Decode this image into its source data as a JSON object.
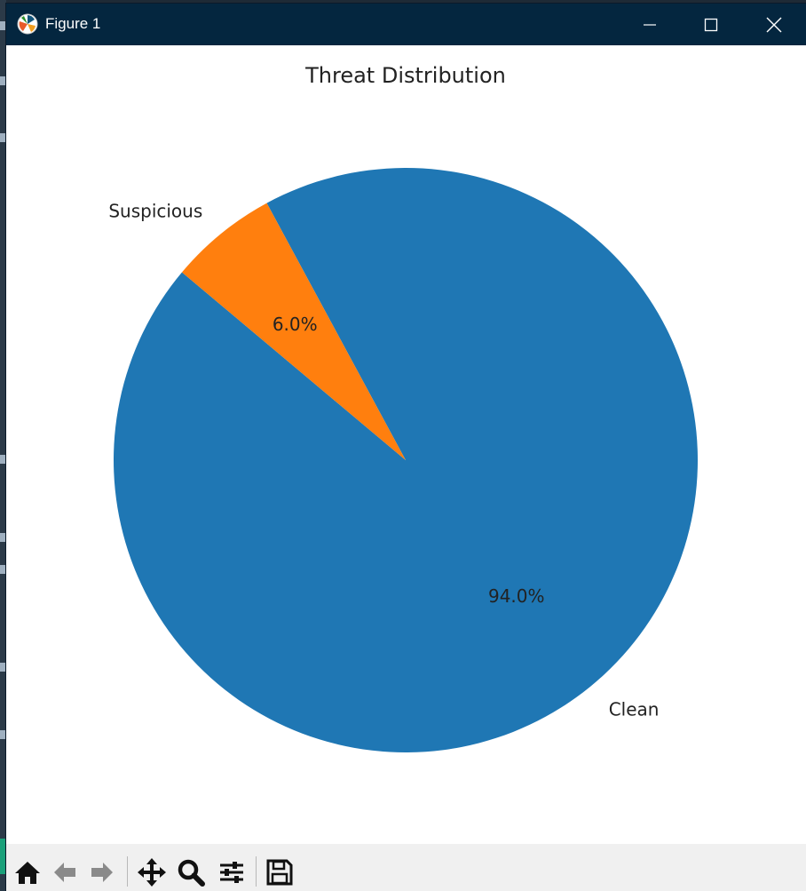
{
  "window": {
    "title": "Figure 1",
    "title_bar_color": "#04263f"
  },
  "controls": [
    "minimize-icon",
    "maximize-icon",
    "close-icon"
  ],
  "toolbar": {
    "buttons": [
      "home-icon",
      "back-arrow-icon",
      "forward-arrow-icon",
      "pan-icon",
      "zoom-icon",
      "configure-subplots-icon",
      "save-icon"
    ]
  },
  "chart_data": {
    "type": "pie",
    "title": "Threat Distribution",
    "labels": [
      "Clean",
      "Suspicious"
    ],
    "values": [
      94.0,
      6.0
    ],
    "pct_labels": [
      "94.0%",
      "6.0%"
    ],
    "colors": [
      "#1f77b4",
      "#ff7f0e"
    ],
    "start_angle_deg": 140,
    "direction": "counterclockwise"
  }
}
